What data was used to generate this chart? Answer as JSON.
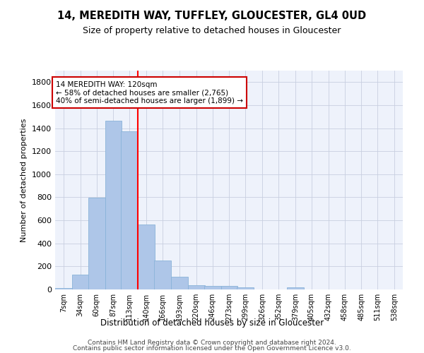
{
  "title": "14, MEREDITH WAY, TUFFLEY, GLOUCESTER, GL4 0UD",
  "subtitle": "Size of property relative to detached houses in Gloucester",
  "xlabel": "Distribution of detached houses by size in Gloucester",
  "ylabel": "Number of detached properties",
  "footer1": "Contains HM Land Registry data © Crown copyright and database right 2024.",
  "footer2": "Contains public sector information licensed under the Open Government Licence v3.0.",
  "bar_color": "#aec6e8",
  "bar_edge_color": "#89b3d9",
  "bg_color": "#eef2fb",
  "grid_color": "#c8cfe0",
  "annotation_text": "14 MEREDITH WAY: 120sqm\n← 58% of detached houses are smaller (2,765)\n40% of semi-detached houses are larger (1,899) →",
  "annotation_box_color": "#cc0000",
  "redline_x": 140,
  "categories": [
    "7sqm",
    "34sqm",
    "60sqm",
    "87sqm",
    "113sqm",
    "140sqm",
    "166sqm",
    "193sqm",
    "220sqm",
    "246sqm",
    "273sqm",
    "299sqm",
    "326sqm",
    "352sqm",
    "379sqm",
    "405sqm",
    "432sqm",
    "458sqm",
    "485sqm",
    "511sqm",
    "538sqm"
  ],
  "bin_edges": [
    7,
    34,
    60,
    87,
    113,
    140,
    166,
    193,
    220,
    246,
    273,
    299,
    326,
    352,
    379,
    405,
    432,
    458,
    485,
    511,
    538
  ],
  "values": [
    15,
    130,
    795,
    1465,
    1370,
    565,
    250,
    110,
    38,
    30,
    30,
    20,
    0,
    0,
    20,
    0,
    0,
    0,
    0,
    0,
    0
  ],
  "ylim": [
    0,
    1900
  ],
  "yticks": [
    0,
    200,
    400,
    600,
    800,
    1000,
    1200,
    1400,
    1600,
    1800
  ]
}
